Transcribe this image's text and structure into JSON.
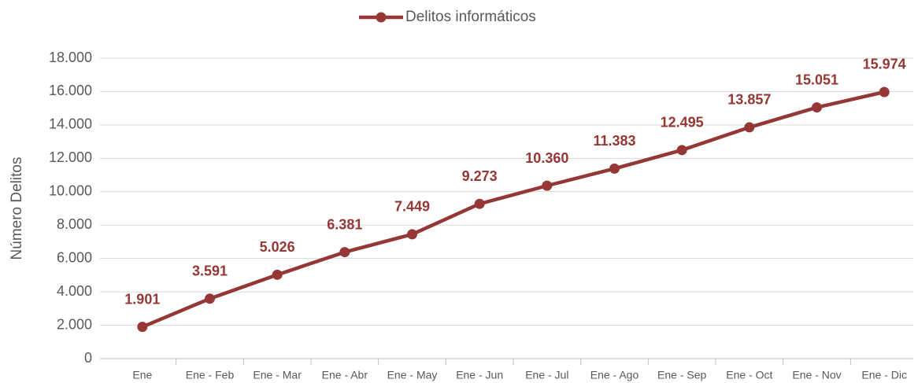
{
  "chart_data": {
    "type": "line",
    "y_label": "Número Delitos",
    "categories": [
      "Ene",
      "Ene - Feb",
      "Ene - Mar",
      "Ene - Abr",
      "Ene - May",
      "Ene - Jun",
      "Ene - Jul",
      "Ene - Ago",
      "Ene - Sep",
      "Ene - Oct",
      "Ene - Nov",
      "Ene - Dic"
    ],
    "series": [
      {
        "name": "Delitos informáticos",
        "color": "#953735",
        "values": [
          1901,
          3591,
          5026,
          6381,
          7449,
          9273,
          10360,
          11383,
          12495,
          13857,
          15051,
          15974
        ],
        "value_labels": [
          "1.901",
          "3.591",
          "5.026",
          "6.381",
          "7.449",
          "9.273",
          "10.360",
          "11.383",
          "12.495",
          "13.857",
          "15.051",
          "15.974"
        ]
      }
    ],
    "ylim": [
      0,
      18000
    ],
    "yticks": [
      0,
      {
        "value": 2000,
        "label": "2.000"
      },
      {
        "value": 4000,
        "label": "4.000"
      },
      {
        "value": 6000,
        "label": "6.000"
      },
      {
        "value": 8000,
        "label": "8.000"
      },
      {
        "value": 10000,
        "label": "10.000"
      },
      {
        "value": 12000,
        "label": "12.000"
      },
      {
        "value": 14000,
        "label": "14.000"
      },
      {
        "value": 16000,
        "label": "16.000"
      },
      {
        "value": 18000,
        "label": "18.000"
      }
    ],
    "grid": true,
    "legend": "top"
  }
}
